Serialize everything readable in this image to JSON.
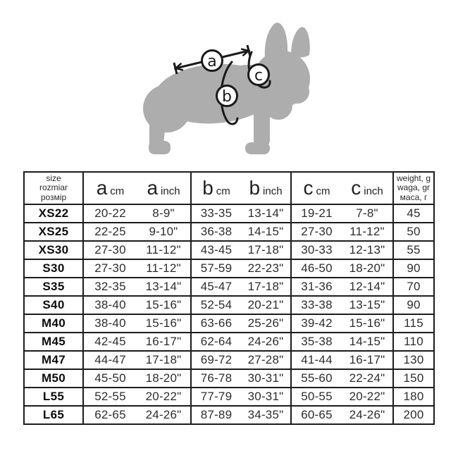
{
  "diagram": {
    "dog_color": "#adadad",
    "line_color": "#1a1a1a",
    "markers": [
      {
        "letter": "a"
      },
      {
        "letter": "b"
      },
      {
        "letter": "c"
      }
    ]
  },
  "colors": {
    "background": "#ffffff",
    "table_border": "#1c1c1c",
    "body_text": "#2d2d2d",
    "size_text": "#0d0d0d",
    "dog_silhouette": "#adadad"
  },
  "chart_data": {
    "type": "table",
    "size_header_lines": [
      "size",
      "rozmiar",
      "розмір"
    ],
    "weight_header_lines": [
      "weight, g",
      "waga, gr",
      "маса, г"
    ],
    "measure_groups": [
      {
        "letter": "a",
        "units": [
          "cm",
          "inch"
        ]
      },
      {
        "letter": "b",
        "units": [
          "cm",
          "inch"
        ]
      },
      {
        "letter": "c",
        "units": [
          "cm",
          "inch"
        ]
      }
    ],
    "columns": [
      "size",
      "a cm",
      "a inch",
      "b cm",
      "b inch",
      "c cm",
      "c inch",
      "weight g"
    ],
    "rows": [
      {
        "size": "XS22",
        "a_cm": "20-22",
        "a_inch": "8-9\"",
        "b_cm": "33-35",
        "b_inch": "13-14\"",
        "c_cm": "19-21",
        "c_inch": "7-8\"",
        "weight": "45"
      },
      {
        "size": "XS25",
        "a_cm": "22-25",
        "a_inch": "9-10\"",
        "b_cm": "36-38",
        "b_inch": "14-15\"",
        "c_cm": "27-30",
        "c_inch": "11-12\"",
        "weight": "50"
      },
      {
        "size": "XS30",
        "a_cm": "27-30",
        "a_inch": "11-12\"",
        "b_cm": "43-45",
        "b_inch": "17-18\"",
        "c_cm": "30-33",
        "c_inch": "12-13\"",
        "weight": "55"
      },
      {
        "size": "S30",
        "a_cm": "27-30",
        "a_inch": "11-12\"",
        "b_cm": "57-59",
        "b_inch": "22-23\"",
        "c_cm": "46-50",
        "c_inch": "18-20\"",
        "weight": "90"
      },
      {
        "size": "S35",
        "a_cm": "32-35",
        "a_inch": "13-14\"",
        "b_cm": "45-47",
        "b_inch": "17-18\"",
        "c_cm": "31-36",
        "c_inch": "12-14\"",
        "weight": "70"
      },
      {
        "size": "S40",
        "a_cm": "38-40",
        "a_inch": "15-16\"",
        "b_cm": "52-54",
        "b_inch": "20-21\"",
        "c_cm": "33-38",
        "c_inch": "13-15\"",
        "weight": "90"
      },
      {
        "size": "M40",
        "a_cm": "38-40",
        "a_inch": "15-16\"",
        "b_cm": "63-66",
        "b_inch": "25-26\"",
        "c_cm": "39-42",
        "c_inch": "15-16\"",
        "weight": "115"
      },
      {
        "size": "M45",
        "a_cm": "42-45",
        "a_inch": "16-17\"",
        "b_cm": "62-64",
        "b_inch": "24-26\"",
        "c_cm": "35-38",
        "c_inch": "14-15\"",
        "weight": "110"
      },
      {
        "size": "M47",
        "a_cm": "44-47",
        "a_inch": "17-18\"",
        "b_cm": "69-72",
        "b_inch": "27-28\"",
        "c_cm": "41-44",
        "c_inch": "16-17\"",
        "weight": "130"
      },
      {
        "size": "M50",
        "a_cm": "45-50",
        "a_inch": "18-20\"",
        "b_cm": "76-78",
        "b_inch": "30-31\"",
        "c_cm": "55-60",
        "c_inch": "22-24\"",
        "weight": "150"
      },
      {
        "size": "L55",
        "a_cm": "52-55",
        "a_inch": "20-22\"",
        "b_cm": "77-79",
        "b_inch": "30-31\"",
        "c_cm": "50-55",
        "c_inch": "20-22\"",
        "weight": "180"
      },
      {
        "size": "L65",
        "a_cm": "62-65",
        "a_inch": "24-26\"",
        "b_cm": "87-89",
        "b_inch": "34-35\"",
        "c_cm": "60-65",
        "c_inch": "24-26\"",
        "weight": "200"
      }
    ]
  }
}
